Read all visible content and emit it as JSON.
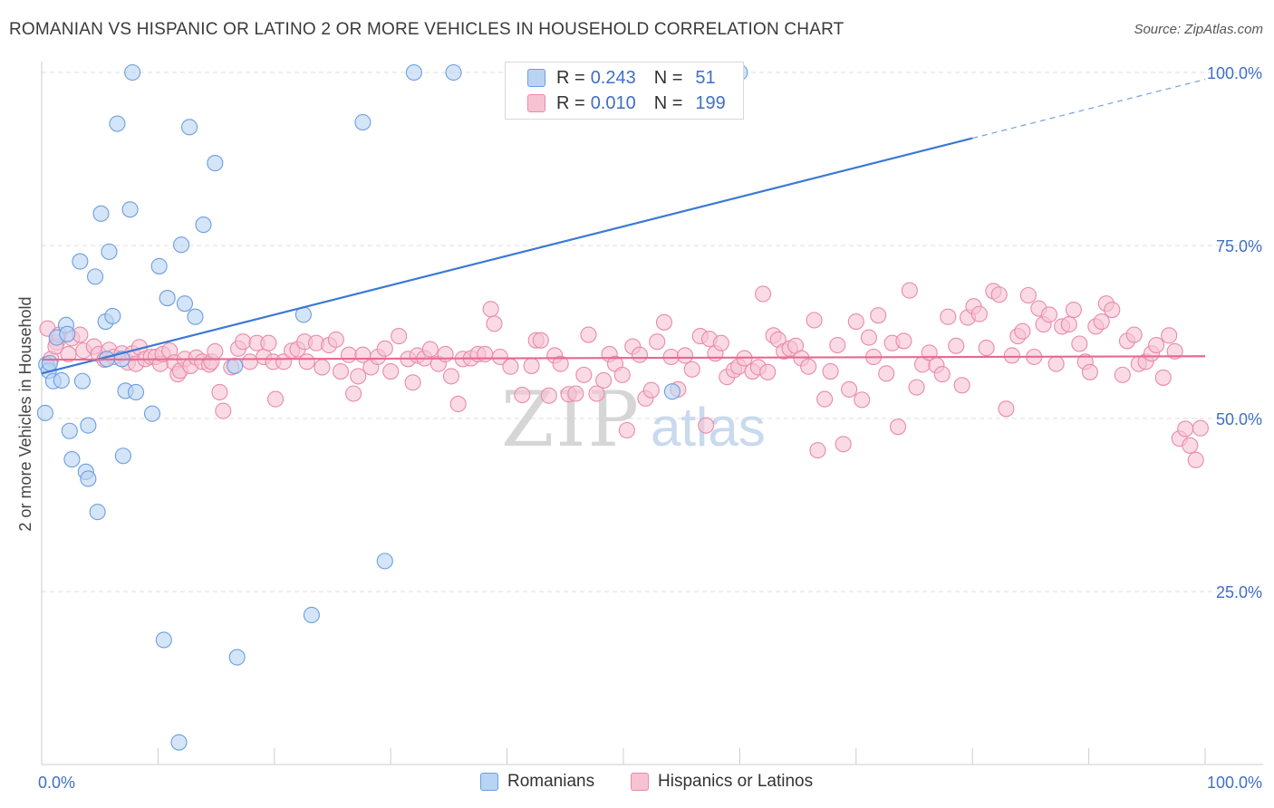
{
  "title": "ROMANIAN VS HISPANIC OR LATINO 2 OR MORE VEHICLES IN HOUSEHOLD CORRELATION CHART",
  "source": "Source: ZipAtlas.com",
  "watermark": {
    "zip": "ZIP",
    "atlas": "atlas"
  },
  "legend_top": {
    "rows": [
      {
        "r_label": "R =",
        "r_value": "0.243",
        "n_label": "N =",
        "n_value": "51"
      },
      {
        "r_label": "R =",
        "r_value": "0.010",
        "n_label": "N =",
        "n_value": "199"
      }
    ]
  },
  "legend_bottom": {
    "items": [
      "Romanians",
      "Hispanics or Latinos"
    ]
  },
  "colors": {
    "blue_fill": "#b9d3f3",
    "blue_stroke": "#6b9ee0",
    "blue_line": "#3b78d4",
    "pink_fill": "#f7c3d3",
    "pink_stroke": "#ea8aa8",
    "pink_line": "#e8688f",
    "axis_text": "#3f6fc4",
    "grid": "#dddddd"
  },
  "chart_data": {
    "type": "scatter",
    "title": "ROMANIAN VS HISPANIC OR LATINO 2 OR MORE VEHICLES IN HOUSEHOLD CORRELATION CHART",
    "xlabel": "",
    "ylabel": "2 or more Vehicles in Household",
    "xlim": [
      0,
      100
    ],
    "ylim": [
      0,
      100
    ],
    "x_tick_labels": [
      "0.0%",
      "100.0%"
    ],
    "y_tick_labels": [
      "25.0%",
      "50.0%",
      "75.0%",
      "100.0%"
    ],
    "y_ticks": [
      25,
      50,
      75,
      100
    ],
    "grid": true,
    "legend_position": "top-center",
    "series": [
      {
        "name": "Romanians",
        "r": 0.243,
        "n": 51,
        "trend": {
          "x0": 0,
          "y0": 56.5,
          "x1": 80,
          "y1": 90.5,
          "dashed_to_x": 100,
          "dashed_to_y": 99
        },
        "points": [
          [
            0.3,
            50.8
          ],
          [
            0.4,
            57.8
          ],
          [
            0.6,
            56.9
          ],
          [
            0.7,
            58
          ],
          [
            1,
            55.4
          ],
          [
            1.3,
            61.7
          ],
          [
            1.7,
            55.5
          ],
          [
            2.1,
            63.5
          ],
          [
            2.2,
            62.2
          ],
          [
            2.4,
            48.2
          ],
          [
            2.6,
            44.1
          ],
          [
            3.3,
            72.7
          ],
          [
            3.5,
            55.4
          ],
          [
            4,
            49
          ],
          [
            3.8,
            42.3
          ],
          [
            4,
            41.3
          ],
          [
            4.6,
            70.5
          ],
          [
            4.8,
            36.5
          ],
          [
            5.1,
            79.6
          ],
          [
            5.5,
            64
          ],
          [
            5.6,
            58.6
          ],
          [
            5.8,
            74.1
          ],
          [
            6.1,
            64.8
          ],
          [
            6.5,
            92.6
          ],
          [
            6.9,
            58.6
          ],
          [
            7,
            44.6
          ],
          [
            7.2,
            54
          ],
          [
            7.6,
            80.2
          ],
          [
            7.8,
            100
          ],
          [
            8.1,
            53.8
          ],
          [
            9.5,
            50.7
          ],
          [
            10.1,
            72
          ],
          [
            10.5,
            18
          ],
          [
            10.8,
            67.4
          ],
          [
            11.8,
            3.2
          ],
          [
            12,
            75.1
          ],
          [
            12.3,
            66.6
          ],
          [
            12.7,
            92.1
          ],
          [
            13.2,
            64.7
          ],
          [
            13.9,
            78
          ],
          [
            14.9,
            86.9
          ],
          [
            16.6,
            57.6
          ],
          [
            16.8,
            15.5
          ],
          [
            22.5,
            65
          ],
          [
            23.2,
            21.6
          ],
          [
            27.6,
            92.8
          ],
          [
            29.5,
            29.4
          ],
          [
            32,
            100
          ],
          [
            35.4,
            100
          ],
          [
            54.2,
            53.9
          ],
          [
            60,
            100
          ]
        ]
      },
      {
        "name": "Hispanics or Latinos",
        "r": 0.01,
        "n": 199,
        "trend": {
          "x0": 0,
          "y0": 58.5,
          "x1": 100,
          "y1": 59
        },
        "points": [
          [
            0.8,
            58.6
          ],
          [
            0.5,
            63
          ],
          [
            1.3,
            61
          ],
          [
            1.2,
            60.4
          ],
          [
            1.5,
            62.1
          ],
          [
            2.3,
            59.3
          ],
          [
            2.6,
            61.6
          ],
          [
            3.3,
            62.1
          ],
          [
            3.6,
            59.8
          ],
          [
            4.5,
            60.4
          ],
          [
            4.9,
            59.3
          ],
          [
            5.4,
            58.5
          ],
          [
            5.8,
            59.9
          ],
          [
            6.2,
            58.9
          ],
          [
            6.9,
            59.4
          ],
          [
            7.4,
            58.1
          ],
          [
            7.8,
            59.4
          ],
          [
            8.1,
            57.9
          ],
          [
            8.4,
            60.3
          ],
          [
            8.9,
            58.6
          ],
          [
            9.4,
            58.9
          ],
          [
            9.8,
            58.9
          ],
          [
            10.2,
            57.9
          ],
          [
            10.4,
            59.3
          ],
          [
            11,
            59.8
          ],
          [
            11.4,
            58.1
          ],
          [
            11.7,
            56.4
          ],
          [
            11.9,
            56.9
          ],
          [
            12.3,
            58.6
          ],
          [
            12.8,
            57.6
          ],
          [
            13.3,
            58.8
          ],
          [
            13.8,
            58.2
          ],
          [
            14.4,
            57.8
          ],
          [
            14.6,
            58.2
          ],
          [
            14.9,
            59.7
          ],
          [
            15.3,
            53.8
          ],
          [
            15.6,
            51.1
          ],
          [
            16.3,
            57.4
          ],
          [
            16.9,
            60.1
          ],
          [
            17.3,
            61.1
          ],
          [
            17.9,
            58.2
          ],
          [
            18.5,
            60.9
          ],
          [
            19.1,
            58.9
          ],
          [
            19.5,
            60.9
          ],
          [
            19.9,
            58.2
          ],
          [
            20.1,
            52.8
          ],
          [
            20.8,
            58.2
          ],
          [
            21.5,
            59.8
          ],
          [
            22,
            60
          ],
          [
            22.6,
            61.1
          ],
          [
            22.8,
            58.2
          ],
          [
            23.6,
            60.9
          ],
          [
            24.1,
            57.4
          ],
          [
            24.7,
            60.6
          ],
          [
            25.3,
            61.4
          ],
          [
            25.7,
            56.8
          ],
          [
            26.4,
            59.2
          ],
          [
            26.8,
            53.6
          ],
          [
            27.2,
            56.1
          ],
          [
            27.6,
            59.2
          ],
          [
            28.3,
            57.4
          ],
          [
            28.9,
            58.9
          ],
          [
            29.5,
            60.1
          ],
          [
            30,
            56.8
          ],
          [
            30.7,
            61.9
          ],
          [
            31.5,
            58.6
          ],
          [
            31.9,
            55.2
          ],
          [
            32.3,
            59.1
          ],
          [
            32.9,
            58.7
          ],
          [
            33.4,
            60
          ],
          [
            34.1,
            57.9
          ],
          [
            34.7,
            59.3
          ],
          [
            35.2,
            56.1
          ],
          [
            35.8,
            52.1
          ],
          [
            36.2,
            58.6
          ],
          [
            36.9,
            58.7
          ],
          [
            37.5,
            59.3
          ],
          [
            38.1,
            59.3
          ],
          [
            38.6,
            65.8
          ],
          [
            38.9,
            63.7
          ],
          [
            39.4,
            58.9
          ],
          [
            40.3,
            57.5
          ],
          [
            41.3,
            53.4
          ],
          [
            42.1,
            57.6
          ],
          [
            42.5,
            61.3
          ],
          [
            42.9,
            61.3
          ],
          [
            43.6,
            53.3
          ],
          [
            44.1,
            59.1
          ],
          [
            44.6,
            57.9
          ],
          [
            45.3,
            53.5
          ],
          [
            45.9,
            53.6
          ],
          [
            46.6,
            56.3
          ],
          [
            47,
            62.1
          ],
          [
            47.7,
            53.6
          ],
          [
            48.3,
            55.5
          ],
          [
            48.8,
            59.3
          ],
          [
            49.3,
            57.9
          ],
          [
            49.9,
            56.3
          ],
          [
            50.3,
            48.3
          ],
          [
            50.8,
            60.4
          ],
          [
            51.4,
            59.2
          ],
          [
            51.9,
            52.9
          ],
          [
            52.4,
            54.1
          ],
          [
            52.9,
            61.1
          ],
          [
            53.5,
            63.9
          ],
          [
            54.1,
            58.9
          ],
          [
            54.7,
            54.2
          ],
          [
            55.3,
            59.1
          ],
          [
            55.9,
            57.1
          ],
          [
            56.6,
            61.9
          ],
          [
            57.1,
            49
          ],
          [
            57.4,
            61.5
          ],
          [
            57.9,
            59.4
          ],
          [
            58.4,
            60.9
          ],
          [
            58.9,
            56
          ],
          [
            59.5,
            57
          ],
          [
            59.9,
            57.5
          ],
          [
            60.4,
            58.7
          ],
          [
            61.1,
            56.8
          ],
          [
            61.6,
            57.4
          ],
          [
            62,
            68
          ],
          [
            62.4,
            56.7
          ],
          [
            62.9,
            62
          ],
          [
            63.3,
            61.4
          ],
          [
            63.8,
            59.7
          ],
          [
            64.3,
            60.1
          ],
          [
            64.8,
            60.5
          ],
          [
            65.3,
            58.7
          ],
          [
            65.9,
            57.5
          ],
          [
            66.4,
            64.2
          ],
          [
            66.7,
            45.4
          ],
          [
            67.3,
            52.8
          ],
          [
            67.8,
            56.8
          ],
          [
            68.4,
            60.6
          ],
          [
            68.9,
            46.3
          ],
          [
            69.4,
            54.2
          ],
          [
            70,
            64
          ],
          [
            70.5,
            52.7
          ],
          [
            71.1,
            61.7
          ],
          [
            71.5,
            58.9
          ],
          [
            71.9,
            64.9
          ],
          [
            72.6,
            56.5
          ],
          [
            73.1,
            60.9
          ],
          [
            73.6,
            48.8
          ],
          [
            74.1,
            61.2
          ],
          [
            74.6,
            68.5
          ],
          [
            75.2,
            54.5
          ],
          [
            75.7,
            57.8
          ],
          [
            76.3,
            59.5
          ],
          [
            76.9,
            57.7
          ],
          [
            77.4,
            56.4
          ],
          [
            77.9,
            64.7
          ],
          [
            78.6,
            60.5
          ],
          [
            79.1,
            54.8
          ],
          [
            79.6,
            64.6
          ],
          [
            80.1,
            66.2
          ],
          [
            80.6,
            65.1
          ],
          [
            81.2,
            60.2
          ],
          [
            81.8,
            68.4
          ],
          [
            82.3,
            67.9
          ],
          [
            82.9,
            51.4
          ],
          [
            83.4,
            59.1
          ],
          [
            83.9,
            61.9
          ],
          [
            84.3,
            62.6
          ],
          [
            84.8,
            67.8
          ],
          [
            85.3,
            58.9
          ],
          [
            85.7,
            65.9
          ],
          [
            86.1,
            63.6
          ],
          [
            86.6,
            65
          ],
          [
            87.2,
            57.9
          ],
          [
            87.7,
            63.3
          ],
          [
            88.3,
            63.6
          ],
          [
            88.7,
            65.7
          ],
          [
            89.2,
            60.8
          ],
          [
            89.7,
            58.2
          ],
          [
            90.1,
            56.7
          ],
          [
            90.6,
            63.3
          ],
          [
            91.1,
            64
          ],
          [
            91.5,
            66.6
          ],
          [
            92,
            65.7
          ],
          [
            92.9,
            56.3
          ],
          [
            93.3,
            61.2
          ],
          [
            93.9,
            62.1
          ],
          [
            94.3,
            57.9
          ],
          [
            94.9,
            58.2
          ],
          [
            95.4,
            59.4
          ],
          [
            95.8,
            60.6
          ],
          [
            96.4,
            55.9
          ],
          [
            96.9,
            62
          ],
          [
            97.4,
            59.7
          ],
          [
            97.8,
            47.1
          ],
          [
            98.3,
            48.5
          ],
          [
            98.7,
            46.1
          ],
          [
            99.2,
            44
          ],
          [
            99.6,
            48.6
          ]
        ]
      }
    ]
  }
}
